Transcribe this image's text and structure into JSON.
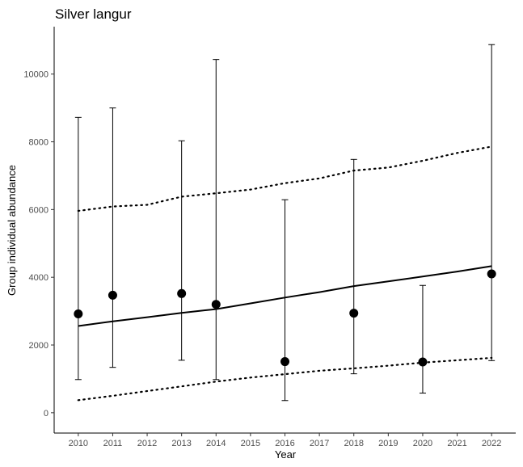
{
  "chart_data": {
    "type": "scatter",
    "title": "Silver langur",
    "xlabel": "Year",
    "ylabel": "Group individual abundance",
    "x_ticks": [
      2010,
      2011,
      2012,
      2013,
      2014,
      2015,
      2016,
      2017,
      2018,
      2019,
      2020,
      2021,
      2022
    ],
    "y_ticks": [
      0,
      2000,
      4000,
      6000,
      8000,
      10000
    ],
    "xlim": [
      2009.3,
      2022.7
    ],
    "ylim": [
      -600,
      11400
    ],
    "grid": false,
    "series": [
      {
        "kind": "points-with-error-bars",
        "points": [
          {
            "x": 2010,
            "y": 2920,
            "lower": 980,
            "upper": 8720
          },
          {
            "x": 2011,
            "y": 3470,
            "lower": 1340,
            "upper": 9000
          },
          {
            "x": 2013,
            "y": 3520,
            "lower": 1550,
            "upper": 8030
          },
          {
            "x": 2014,
            "y": 3200,
            "lower": 980,
            "upper": 10430
          },
          {
            "x": 2016,
            "y": 1510,
            "lower": 360,
            "upper": 6290
          },
          {
            "x": 2018,
            "y": 2940,
            "lower": 1150,
            "upper": 7480
          },
          {
            "x": 2020,
            "y": 1500,
            "lower": 580,
            "upper": 3760
          },
          {
            "x": 2022,
            "y": 4100,
            "lower": 1540,
            "upper": 10870
          }
        ]
      },
      {
        "kind": "trend-line",
        "style": "solid",
        "x": [
          2010,
          2011,
          2012,
          2013,
          2014,
          2015,
          2016,
          2017,
          2018,
          2019,
          2020,
          2021,
          2022
        ],
        "y": [
          2560,
          2700,
          2820,
          2950,
          3060,
          3230,
          3400,
          3560,
          3740,
          3880,
          4020,
          4170,
          4330
        ]
      },
      {
        "kind": "upper-interval",
        "style": "dotted",
        "x": [
          2010,
          2011,
          2012,
          2013,
          2014,
          2015,
          2016,
          2017,
          2018,
          2019,
          2020,
          2021,
          2022
        ],
        "y": [
          5960,
          6090,
          6140,
          6380,
          6480,
          6590,
          6780,
          6920,
          7150,
          7240,
          7440,
          7670,
          7860
        ]
      },
      {
        "kind": "lower-interval",
        "style": "dotted",
        "x": [
          2010,
          2011,
          2012,
          2013,
          2014,
          2015,
          2016,
          2017,
          2018,
          2019,
          2020,
          2021,
          2022
        ],
        "y": [
          370,
          500,
          640,
          780,
          920,
          1040,
          1140,
          1240,
          1310,
          1390,
          1480,
          1550,
          1620
        ]
      }
    ]
  }
}
